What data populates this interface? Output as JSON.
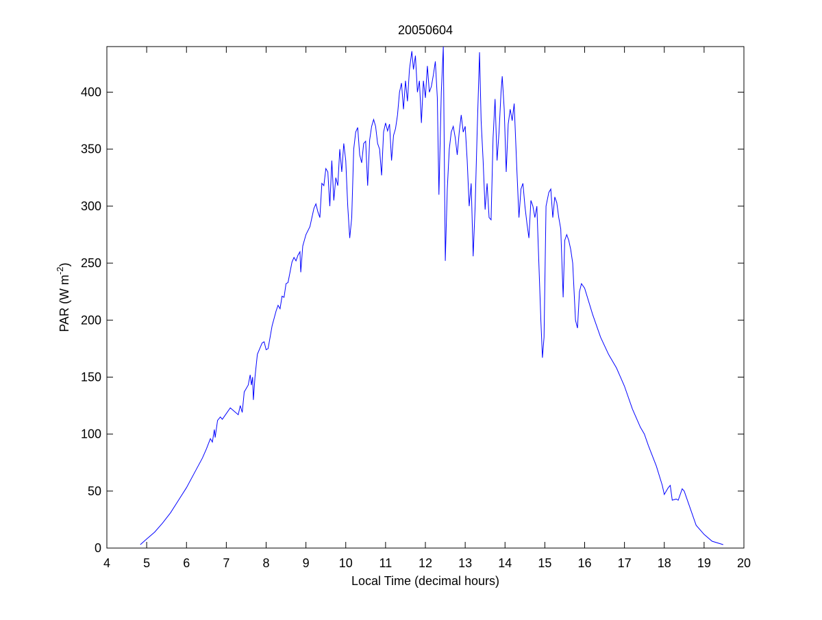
{
  "chart_data": {
    "type": "line",
    "title": "20050604",
    "xlabel": "Local Time (decimal hours)",
    "ylabel": {
      "text": "PAR (W m",
      "superscript": "-2",
      "suffix": ")"
    },
    "color": "#0000ff",
    "xlim": [
      4,
      20
    ],
    "ylim": [
      0,
      440
    ],
    "xticks": [
      4,
      5,
      6,
      7,
      8,
      9,
      10,
      11,
      12,
      13,
      14,
      15,
      16,
      17,
      18,
      19,
      20
    ],
    "yticks": [
      0,
      50,
      100,
      150,
      200,
      250,
      300,
      350,
      400
    ],
    "x": [
      4.84,
      5.0,
      5.2,
      5.4,
      5.6,
      5.8,
      6.0,
      6.2,
      6.4,
      6.5,
      6.6,
      6.65,
      6.7,
      6.72,
      6.78,
      6.85,
      6.9,
      7.0,
      7.1,
      7.2,
      7.3,
      7.35,
      7.4,
      7.45,
      7.5,
      7.55,
      7.6,
      7.63,
      7.66,
      7.68,
      7.72,
      7.78,
      7.9,
      7.95,
      8.0,
      8.05,
      8.15,
      8.25,
      8.3,
      8.35,
      8.4,
      8.45,
      8.5,
      8.55,
      8.65,
      8.7,
      8.75,
      8.8,
      8.85,
      8.87,
      8.92,
      9.0,
      9.1,
      9.2,
      9.25,
      9.3,
      9.35,
      9.4,
      9.45,
      9.5,
      9.55,
      9.6,
      9.65,
      9.7,
      9.75,
      9.8,
      9.85,
      9.9,
      9.95,
      10.0,
      10.05,
      10.1,
      10.15,
      10.2,
      10.25,
      10.3,
      10.35,
      10.4,
      10.45,
      10.5,
      10.55,
      10.6,
      10.65,
      10.7,
      10.75,
      10.8,
      10.85,
      10.9,
      10.95,
      11.0,
      11.05,
      11.1,
      11.15,
      11.2,
      11.25,
      11.3,
      11.35,
      11.4,
      11.45,
      11.5,
      11.55,
      11.6,
      11.66,
      11.7,
      11.75,
      11.8,
      11.85,
      11.9,
      11.95,
      12.0,
      12.05,
      12.1,
      12.15,
      12.2,
      12.25,
      12.3,
      12.34,
      12.4,
      12.45,
      12.5,
      12.55,
      12.6,
      12.65,
      12.7,
      12.75,
      12.8,
      12.85,
      12.9,
      12.95,
      13.0,
      13.05,
      13.1,
      13.15,
      13.2,
      13.25,
      13.3,
      13.36,
      13.4,
      13.45,
      13.5,
      13.55,
      13.6,
      13.65,
      13.7,
      13.75,
      13.8,
      13.85,
      13.9,
      13.93,
      13.98,
      14.03,
      14.08,
      14.13,
      14.18,
      14.23,
      14.3,
      14.35,
      14.4,
      14.45,
      14.5,
      14.55,
      14.6,
      14.65,
      14.7,
      14.75,
      14.8,
      14.85,
      14.9,
      14.94,
      14.98,
      15.03,
      15.1,
      15.15,
      15.2,
      15.25,
      15.3,
      15.35,
      15.4,
      15.46,
      15.5,
      15.55,
      15.6,
      15.65,
      15.7,
      15.77,
      15.82,
      15.87,
      15.92,
      16.0,
      16.2,
      16.4,
      16.6,
      16.8,
      16.9,
      17.0,
      17.2,
      17.4,
      17.5,
      17.6,
      17.8,
      17.95,
      18.0,
      18.1,
      18.15,
      18.2,
      18.3,
      18.35,
      18.45,
      18.5,
      18.6,
      18.7,
      18.8,
      19.0,
      19.2,
      19.48
    ],
    "values": [
      3,
      8,
      14,
      22,
      31,
      42,
      53,
      66,
      79,
      87,
      96,
      93,
      104,
      97,
      112,
      115,
      113,
      118,
      123,
      120,
      117,
      125,
      119,
      137,
      140,
      143,
      152,
      143,
      150,
      130,
      150,
      170,
      180,
      181,
      174,
      175,
      195,
      208,
      213,
      210,
      221,
      220,
      232,
      233,
      251,
      255,
      252,
      257,
      260,
      242,
      265,
      275,
      282,
      298,
      302,
      295,
      290,
      320,
      318,
      333,
      330,
      300,
      340,
      305,
      325,
      318,
      350,
      330,
      355,
      340,
      300,
      272,
      290,
      350,
      365,
      369,
      345,
      338,
      355,
      357,
      318,
      358,
      370,
      376,
      370,
      355,
      350,
      327,
      365,
      373,
      366,
      372,
      340,
      362,
      368,
      380,
      400,
      408,
      385,
      410,
      392,
      420,
      436,
      420,
      432,
      400,
      410,
      373,
      410,
      395,
      423,
      400,
      405,
      415,
      427,
      395,
      310,
      400,
      440,
      252,
      315,
      350,
      365,
      370,
      360,
      345,
      365,
      380,
      365,
      370,
      340,
      300,
      320,
      256,
      300,
      365,
      435,
      375,
      340,
      297,
      320,
      290,
      288,
      360,
      394,
      340,
      365,
      400,
      414,
      385,
      330,
      372,
      385,
      375,
      390,
      330,
      290,
      315,
      320,
      300,
      285,
      272,
      305,
      300,
      290,
      300,
      250,
      200,
      167,
      185,
      300,
      312,
      315,
      290,
      308,
      303,
      290,
      280,
      220,
      270,
      275,
      270,
      262,
      250,
      200,
      193,
      225,
      232,
      228,
      205,
      185,
      170,
      158,
      150,
      142,
      122,
      106,
      100,
      90,
      72,
      55,
      47,
      53,
      55,
      42,
      43,
      42,
      52,
      50,
      40,
      30,
      20,
      12,
      6,
      3
    ]
  }
}
